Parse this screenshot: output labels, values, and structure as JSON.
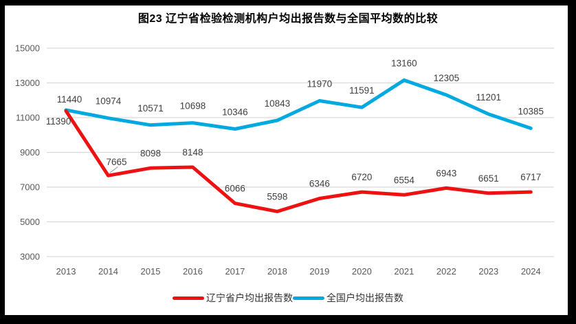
{
  "title": "图23 辽宁省检验检测机构户均出报告数与全国平均数的比较",
  "chart_data": {
    "type": "line",
    "categories": [
      "2013",
      "2014",
      "2015",
      "2016",
      "2017",
      "2018",
      "2019",
      "2020",
      "2021",
      "2022",
      "2023",
      "2024"
    ],
    "series": [
      {
        "name": "辽宁省户均出报告数",
        "color": "#ED1111",
        "values": [
          11390,
          7665,
          8098,
          8148,
          6066,
          5598,
          6346,
          6720,
          6554,
          6943,
          6651,
          6717
        ]
      },
      {
        "name": "全国户均出报告数",
        "color": "#00A9E0",
        "values": [
          11440,
          10974,
          10571,
          10698,
          10346,
          10843,
          11970,
          11591,
          13160,
          12305,
          11201,
          10385
        ]
      }
    ],
    "ylim": [
      3000,
      15000
    ],
    "ytick_step": 2000,
    "yticks": [
      "15000",
      "13000",
      "11000",
      "9000",
      "7000",
      "5000",
      "3000"
    ],
    "xlabel": "",
    "ylabel": "",
    "grid": "horizontal",
    "legend_position": "bottom",
    "colors": {
      "gridline": "#D9D9D9",
      "axis_label": "#595959",
      "data_label": "#404040",
      "leader_line": "#A6A6A6",
      "frame": "#000000"
    }
  }
}
